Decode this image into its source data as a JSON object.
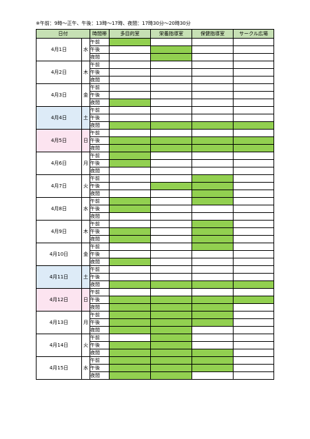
{
  "note": "※午前：9時～正午、午後：13時～17時、夜間：17時30分～20時30分",
  "headers": [
    "日付",
    "時間帯",
    "多目的室",
    "栄養指導室",
    "保健指導室",
    "サークル広場"
  ],
  "slots": [
    "午前",
    "午後",
    "夜間"
  ],
  "colors": {
    "header": "#c6e0b4",
    "booked": "#92d050",
    "saturday": "#ddebf7",
    "sunday": "#fce4f0"
  },
  "days": [
    {
      "date": "4月1日",
      "dow": "水",
      "booked": [
        [
          1,
          0,
          0,
          0
        ],
        [
          0,
          1,
          0,
          0
        ],
        [
          0,
          1,
          0,
          0
        ]
      ]
    },
    {
      "date": "4月2日",
      "dow": "木",
      "booked": [
        [
          0,
          0,
          0,
          0
        ],
        [
          0,
          0,
          0,
          0
        ],
        [
          0,
          0,
          0,
          0
        ]
      ]
    },
    {
      "date": "4月3日",
      "dow": "金",
      "booked": [
        [
          0,
          0,
          0,
          0
        ],
        [
          0,
          0,
          0,
          0
        ],
        [
          1,
          0,
          0,
          0
        ]
      ]
    },
    {
      "date": "4月4日",
      "dow": "土",
      "booked": [
        [
          0,
          0,
          0,
          0
        ],
        [
          0,
          0,
          0,
          0
        ],
        [
          1,
          1,
          1,
          1
        ]
      ]
    },
    {
      "date": "4月5日",
      "dow": "日",
      "booked": [
        [
          0,
          0,
          0,
          0
        ],
        [
          1,
          1,
          1,
          1
        ],
        [
          1,
          1,
          1,
          1
        ]
      ]
    },
    {
      "date": "4月6日",
      "dow": "月",
      "booked": [
        [
          1,
          0,
          0,
          0
        ],
        [
          1,
          0,
          0,
          0
        ],
        [
          0,
          0,
          0,
          0
        ]
      ]
    },
    {
      "date": "4月7日",
      "dow": "火",
      "booked": [
        [
          0,
          0,
          1,
          0
        ],
        [
          0,
          1,
          1,
          0
        ],
        [
          0,
          0,
          1,
          0
        ]
      ]
    },
    {
      "date": "4月8日",
      "dow": "水",
      "booked": [
        [
          1,
          0,
          1,
          0
        ],
        [
          1,
          0,
          0,
          0
        ],
        [
          0,
          0,
          0,
          0
        ]
      ]
    },
    {
      "date": "4月9日",
      "dow": "木",
      "booked": [
        [
          0,
          0,
          1,
          0
        ],
        [
          1,
          0,
          1,
          0
        ],
        [
          1,
          0,
          1,
          0
        ]
      ]
    },
    {
      "date": "4月10日",
      "dow": "金",
      "booked": [
        [
          0,
          0,
          1,
          0
        ],
        [
          0,
          0,
          0,
          0
        ],
        [
          1,
          0,
          0,
          0
        ]
      ]
    },
    {
      "date": "4月11日",
      "dow": "土",
      "booked": [
        [
          0,
          0,
          0,
          0
        ],
        [
          0,
          0,
          0,
          0
        ],
        [
          1,
          1,
          1,
          1
        ]
      ]
    },
    {
      "date": "4月12日",
      "dow": "日",
      "booked": [
        [
          0,
          0,
          0,
          0
        ],
        [
          1,
          1,
          1,
          1
        ],
        [
          1,
          1,
          1,
          0
        ]
      ]
    },
    {
      "date": "4月13日",
      "dow": "月",
      "booked": [
        [
          1,
          1,
          1,
          0
        ],
        [
          1,
          1,
          1,
          0
        ],
        [
          1,
          1,
          0,
          0
        ]
      ]
    },
    {
      "date": "4月14日",
      "dow": "火",
      "booked": [
        [
          0,
          1,
          0,
          0
        ],
        [
          1,
          1,
          0,
          0
        ],
        [
          1,
          1,
          1,
          0
        ]
      ]
    },
    {
      "date": "4月15日",
      "dow": "水",
      "booked": [
        [
          1,
          1,
          1,
          0
        ],
        [
          1,
          1,
          1,
          0
        ],
        [
          1,
          1,
          0,
          0
        ]
      ]
    }
  ]
}
